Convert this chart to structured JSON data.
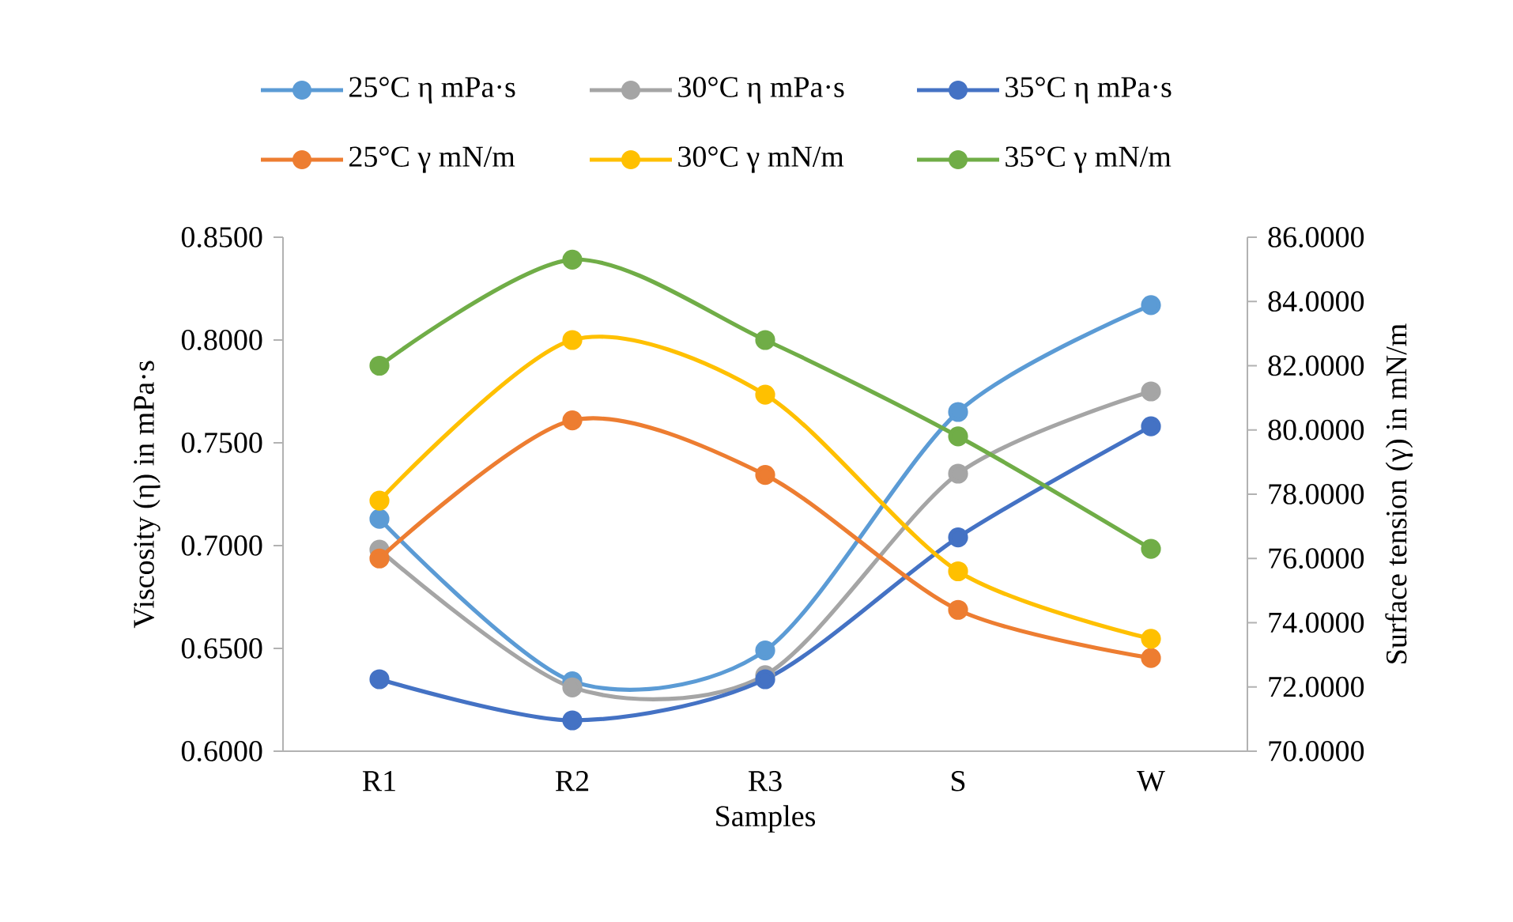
{
  "chart_data": {
    "type": "line",
    "xlabel": "Samples",
    "ylabel": "Viscosity (η) in mPa·s",
    "y2label": "Surface tension (γ) in mN/m",
    "categories": [
      "R1",
      "R2",
      "R3",
      "S",
      "W"
    ],
    "series": [
      {
        "name": "25°C η mPa·s",
        "color": "#5b9bd5",
        "values": [
          0.713,
          0.634,
          0.649,
          0.765,
          0.817
        ]
      },
      {
        "name": "30°C η mPa·s",
        "color": "#a5a5a5",
        "values": [
          0.698,
          0.631,
          0.637,
          0.735,
          0.775
        ]
      },
      {
        "name": "35°C η mPa·s",
        "color": "#4472c4",
        "values": [
          0.635,
          0.615,
          0.635,
          0.704,
          0.758
        ]
      },
      {
        "name": "25°C γ mN/m",
        "color": "#ed7d31",
        "axis": "y2",
        "values": [
          76.0,
          80.3,
          78.6,
          74.4,
          72.9
        ]
      },
      {
        "name": "30°C γ mN/m",
        "color": "#ffc000",
        "axis": "y2",
        "values": [
          77.8,
          82.8,
          81.1,
          75.6,
          73.5
        ]
      },
      {
        "name": "35°C γ mN/m",
        "color": "#70ad47",
        "axis": "y2",
        "values": [
          82.0,
          85.3,
          82.8,
          79.8,
          76.3
        ]
      }
    ],
    "ylim": [
      0.6,
      0.85
    ],
    "yticks": [
      {
        "value": 0.6,
        "label": "0.6000"
      },
      {
        "value": 0.65,
        "label": "0.6500"
      },
      {
        "value": 0.7,
        "label": "0.7000"
      },
      {
        "value": 0.75,
        "label": "0.7500"
      },
      {
        "value": 0.8,
        "label": "0.8000"
      },
      {
        "value": 0.85,
        "label": "0.8500"
      }
    ],
    "y2lim": [
      70,
      86
    ],
    "y2ticks": [
      {
        "value": 70,
        "label": "70.0000"
      },
      {
        "value": 72,
        "label": "72.0000"
      },
      {
        "value": 74,
        "label": "74.0000"
      },
      {
        "value": 76,
        "label": "76.0000"
      },
      {
        "value": 78,
        "label": "78.0000"
      },
      {
        "value": 80,
        "label": "80.0000"
      },
      {
        "value": 82,
        "label": "82.0000"
      },
      {
        "value": 84,
        "label": "84.0000"
      },
      {
        "value": 86,
        "label": "86.0000"
      }
    ],
    "legend": "top",
    "marker": "circle",
    "line_style": "solid",
    "grid": false
  }
}
